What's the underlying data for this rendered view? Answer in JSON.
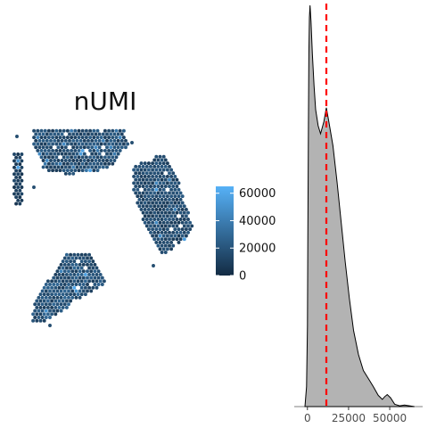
{
  "chart_data": [
    {
      "type": "heatmap",
      "title": "nUMI",
      "legend": {
        "position": "right",
        "ticks": [
          "0",
          "20000",
          "40000",
          "60000"
        ],
        "range": [
          0,
          65000
        ],
        "colors": {
          "low": "#132b43",
          "high": "#56b1f7"
        }
      },
      "regions": [
        {
          "name": "top-left",
          "mean_value": 17000
        },
        {
          "name": "right",
          "mean_value": 15000
        },
        {
          "name": "bottom-left",
          "mean_value": 19000
        },
        {
          "name": "left-edge",
          "mean_value": 9000
        }
      ]
    },
    {
      "type": "area",
      "orientation": "vertical",
      "x_ticks": [
        "0",
        "25000",
        "50000"
      ],
      "xlim": [
        -8000,
        70000
      ],
      "density": [
        {
          "x": -1500,
          "y": 0.0
        },
        {
          "x": -500,
          "y": 0.05
        },
        {
          "x": 0,
          "y": 0.2
        },
        {
          "x": 300,
          "y": 0.45
        },
        {
          "x": 600,
          "y": 0.7
        },
        {
          "x": 900,
          "y": 0.88
        },
        {
          "x": 1200,
          "y": 0.97
        },
        {
          "x": 1600,
          "y": 1.0
        },
        {
          "x": 2200,
          "y": 0.96
        },
        {
          "x": 3000,
          "y": 0.88
        },
        {
          "x": 4000,
          "y": 0.8
        },
        {
          "x": 5000,
          "y": 0.74
        },
        {
          "x": 6500,
          "y": 0.7
        },
        {
          "x": 8000,
          "y": 0.68
        },
        {
          "x": 10000,
          "y": 0.71
        },
        {
          "x": 11500,
          "y": 0.745
        },
        {
          "x": 13000,
          "y": 0.71
        },
        {
          "x": 15500,
          "y": 0.65
        },
        {
          "x": 18000,
          "y": 0.56
        },
        {
          "x": 20500,
          "y": 0.46
        },
        {
          "x": 23000,
          "y": 0.36
        },
        {
          "x": 25500,
          "y": 0.27
        },
        {
          "x": 28000,
          "y": 0.19
        },
        {
          "x": 31000,
          "y": 0.13
        },
        {
          "x": 34000,
          "y": 0.09
        },
        {
          "x": 37000,
          "y": 0.07
        },
        {
          "x": 40000,
          "y": 0.05
        },
        {
          "x": 43000,
          "y": 0.028
        },
        {
          "x": 45500,
          "y": 0.018
        },
        {
          "x": 47000,
          "y": 0.025
        },
        {
          "x": 48500,
          "y": 0.03
        },
        {
          "x": 50500,
          "y": 0.022
        },
        {
          "x": 53000,
          "y": 0.006
        },
        {
          "x": 56000,
          "y": 0.002
        },
        {
          "x": 59000,
          "y": 0.004
        },
        {
          "x": 62000,
          "y": 0.002
        },
        {
          "x": 65000,
          "y": 0.0
        }
      ],
      "reference_line": {
        "x": 11500,
        "color": "#ff0000",
        "style": "dashed"
      },
      "fill": "#b3b3b3",
      "line_color": "#000000"
    }
  ]
}
